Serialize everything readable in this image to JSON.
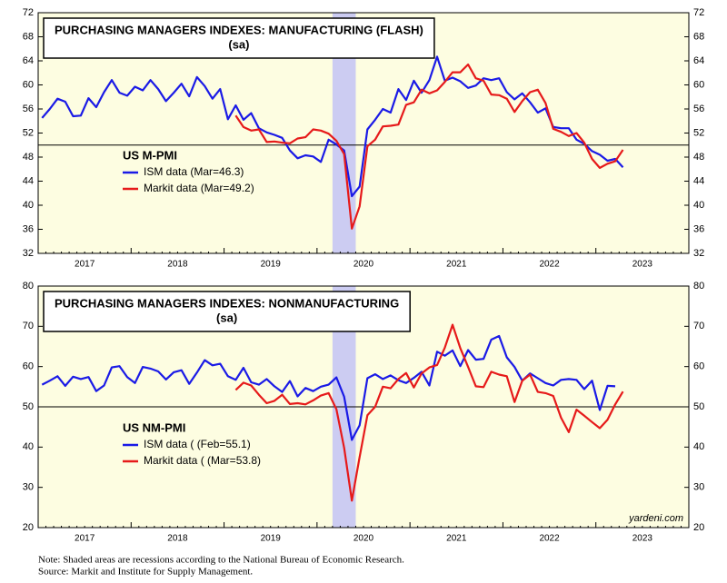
{
  "chart_data": [
    {
      "type": "line",
      "title": "PURCHASING MANAGERS INDEXES: MANUFACTURING (FLASH)",
      "subtitle": "(sa)",
      "legend_title": "US M-PMI",
      "categories": [
        null,
        null,
        null,
        null,
        null,
        null,
        "2017",
        null,
        null,
        null,
        null,
        null,
        null,
        null,
        null,
        null,
        null,
        null,
        "2018",
        null,
        null,
        null,
        null,
        null,
        null,
        null,
        null,
        null,
        null,
        null,
        "2019",
        null,
        null,
        null,
        null,
        null,
        null,
        null,
        null,
        null,
        null,
        null,
        "2020",
        null,
        null,
        null,
        null,
        null,
        null,
        null,
        null,
        null,
        null,
        null,
        "2021",
        null,
        null,
        null,
        null,
        null,
        null,
        null,
        null,
        null,
        null,
        null,
        "2022",
        null,
        null,
        null,
        null,
        null,
        null,
        null,
        null,
        null,
        null,
        null,
        "2023",
        null,
        null,
        null,
        null,
        null
      ],
      "series": [
        {
          "name": "ISM data (Mar=46.3)",
          "color": "#1a1ae6",
          "values": [
            54.5,
            56.0,
            57.7,
            57.2,
            54.8,
            54.9,
            57.8,
            56.3,
            58.8,
            60.8,
            58.7,
            58.2,
            59.7,
            59.1,
            60.8,
            59.3,
            57.3,
            58.7,
            60.2,
            58.1,
            61.3,
            59.8,
            57.7,
            59.3,
            54.3,
            56.6,
            54.2,
            55.3,
            52.8,
            52.1,
            51.7,
            51.2,
            49.1,
            47.8,
            48.3,
            48.1,
            47.2,
            50.9,
            50.1,
            49.1,
            41.5,
            43.1,
            52.6,
            54.2,
            56.0,
            55.4,
            59.3,
            57.5,
            60.7,
            58.7,
            60.8,
            64.7,
            60.7,
            61.2,
            60.6,
            59.5,
            59.9,
            61.1,
            60.8,
            61.1,
            58.8,
            57.6,
            58.6,
            57.1,
            55.4,
            56.1,
            53.0,
            52.8,
            52.8,
            50.9,
            50.2,
            49.0,
            48.4,
            47.4,
            47.7,
            46.3,
            null,
            null,
            null,
            null,
            null,
            null,
            null,
            null
          ]
        },
        {
          "name": "Markit data (Mar=49.2)",
          "color": "#e61a1a",
          "values": [
            null,
            null,
            null,
            null,
            null,
            null,
            null,
            null,
            null,
            null,
            null,
            null,
            null,
            null,
            null,
            null,
            null,
            null,
            null,
            null,
            null,
            null,
            null,
            null,
            null,
            54.9,
            53.0,
            52.4,
            52.6,
            50.5,
            50.6,
            50.4,
            50.3,
            51.1,
            51.3,
            52.6,
            52.4,
            51.9,
            50.7,
            48.5,
            36.1,
            39.8,
            49.8,
            50.9,
            53.1,
            53.2,
            53.4,
            56.7,
            57.1,
            59.2,
            58.6,
            59.1,
            60.5,
            62.1,
            62.1,
            63.4,
            61.1,
            60.7,
            58.4,
            58.3,
            57.7,
            55.5,
            57.3,
            58.8,
            59.2,
            57.0,
            52.7,
            52.2,
            51.5,
            52.0,
            50.4,
            47.7,
            46.2,
            46.9,
            47.3,
            49.2,
            null,
            null,
            null,
            null,
            null,
            null,
            null,
            null
          ]
        }
      ],
      "ylim": [
        32,
        72
      ],
      "yticks": [
        32,
        36,
        40,
        44,
        48,
        52,
        56,
        60,
        64,
        68,
        72
      ],
      "hline": 50,
      "shaded_ranges": [
        [
          38,
          40
        ]
      ]
    },
    {
      "type": "line",
      "title": "PURCHASING MANAGERS INDEXES: NONMANUFACTURING",
      "subtitle": "(sa)",
      "legend_title": "US NM-PMI",
      "annotation": "yardeni.com",
      "categories": [
        null,
        null,
        null,
        null,
        null,
        null,
        "2017",
        null,
        null,
        null,
        null,
        null,
        null,
        null,
        null,
        null,
        null,
        null,
        "2018",
        null,
        null,
        null,
        null,
        null,
        null,
        null,
        null,
        null,
        null,
        null,
        "2019",
        null,
        null,
        null,
        null,
        null,
        null,
        null,
        null,
        null,
        null,
        null,
        "2020",
        null,
        null,
        null,
        null,
        null,
        null,
        null,
        null,
        null,
        null,
        null,
        "2021",
        null,
        null,
        null,
        null,
        null,
        null,
        null,
        null,
        null,
        null,
        null,
        "2022",
        null,
        null,
        null,
        null,
        null,
        null,
        null,
        null,
        null,
        null,
        null,
        "2023",
        null,
        null,
        null,
        null,
        null
      ],
      "series": [
        {
          "name": "ISM data ( (Feb=55.1)",
          "color": "#1a1ae6",
          "values": [
            55.5,
            56.5,
            57.6,
            55.2,
            57.5,
            56.9,
            57.4,
            53.9,
            55.3,
            59.8,
            60.1,
            57.4,
            55.9,
            59.9,
            59.5,
            58.8,
            56.8,
            58.6,
            59.1,
            55.7,
            58.5,
            61.6,
            60.3,
            60.7,
            57.6,
            56.7,
            59.7,
            56.1,
            55.5,
            56.9,
            55.1,
            53.7,
            56.4,
            52.6,
            54.7,
            53.9,
            55.0,
            55.5,
            57.3,
            52.5,
            41.8,
            45.4,
            57.1,
            58.1,
            56.9,
            57.8,
            56.6,
            55.9,
            57.2,
            58.7,
            55.3,
            63.7,
            62.7,
            64.0,
            60.1,
            64.1,
            61.7,
            61.9,
            66.7,
            67.6,
            62.3,
            59.9,
            56.5,
            58.3,
            57.1,
            55.9,
            55.3,
            56.7,
            56.9,
            56.7,
            54.4,
            56.5,
            49.2,
            55.2,
            55.1,
            null,
            null,
            null,
            null,
            null,
            null,
            null,
            null,
            null
          ]
        },
        {
          "name": "Markit data ( (Mar=53.8)",
          "color": "#e61a1a",
          "values": [
            null,
            null,
            null,
            null,
            null,
            null,
            null,
            null,
            null,
            null,
            null,
            null,
            null,
            null,
            null,
            null,
            null,
            null,
            null,
            null,
            null,
            null,
            null,
            null,
            null,
            54.2,
            56.0,
            55.3,
            53.0,
            50.9,
            51.5,
            53.0,
            50.7,
            50.9,
            50.6,
            51.6,
            52.8,
            53.4,
            49.4,
            39.8,
            26.7,
            37.5,
            47.9,
            50.0,
            55.0,
            54.6,
            56.9,
            58.4,
            54.8,
            58.3,
            59.8,
            60.4,
            64.7,
            70.4,
            64.6,
            59.9,
            55.1,
            54.9,
            58.7,
            58.0,
            57.6,
            51.2,
            56.5,
            58.0,
            53.7,
            53.4,
            52.7,
            47.3,
            43.7,
            49.3,
            47.8,
            46.2,
            44.7,
            46.8,
            50.6,
            53.8,
            null,
            null,
            null,
            null,
            null,
            null,
            null,
            null
          ]
        }
      ],
      "ylim": [
        20,
        80
      ],
      "yticks": [
        20,
        30,
        40,
        50,
        60,
        70,
        80
      ],
      "hline": 50,
      "shaded_ranges": [
        [
          38,
          40
        ]
      ]
    }
  ],
  "note": "Note: Shaded areas are recessions according to the National Bureau of Economic Research.",
  "source": "Source: Markit and Institute for Supply Management."
}
